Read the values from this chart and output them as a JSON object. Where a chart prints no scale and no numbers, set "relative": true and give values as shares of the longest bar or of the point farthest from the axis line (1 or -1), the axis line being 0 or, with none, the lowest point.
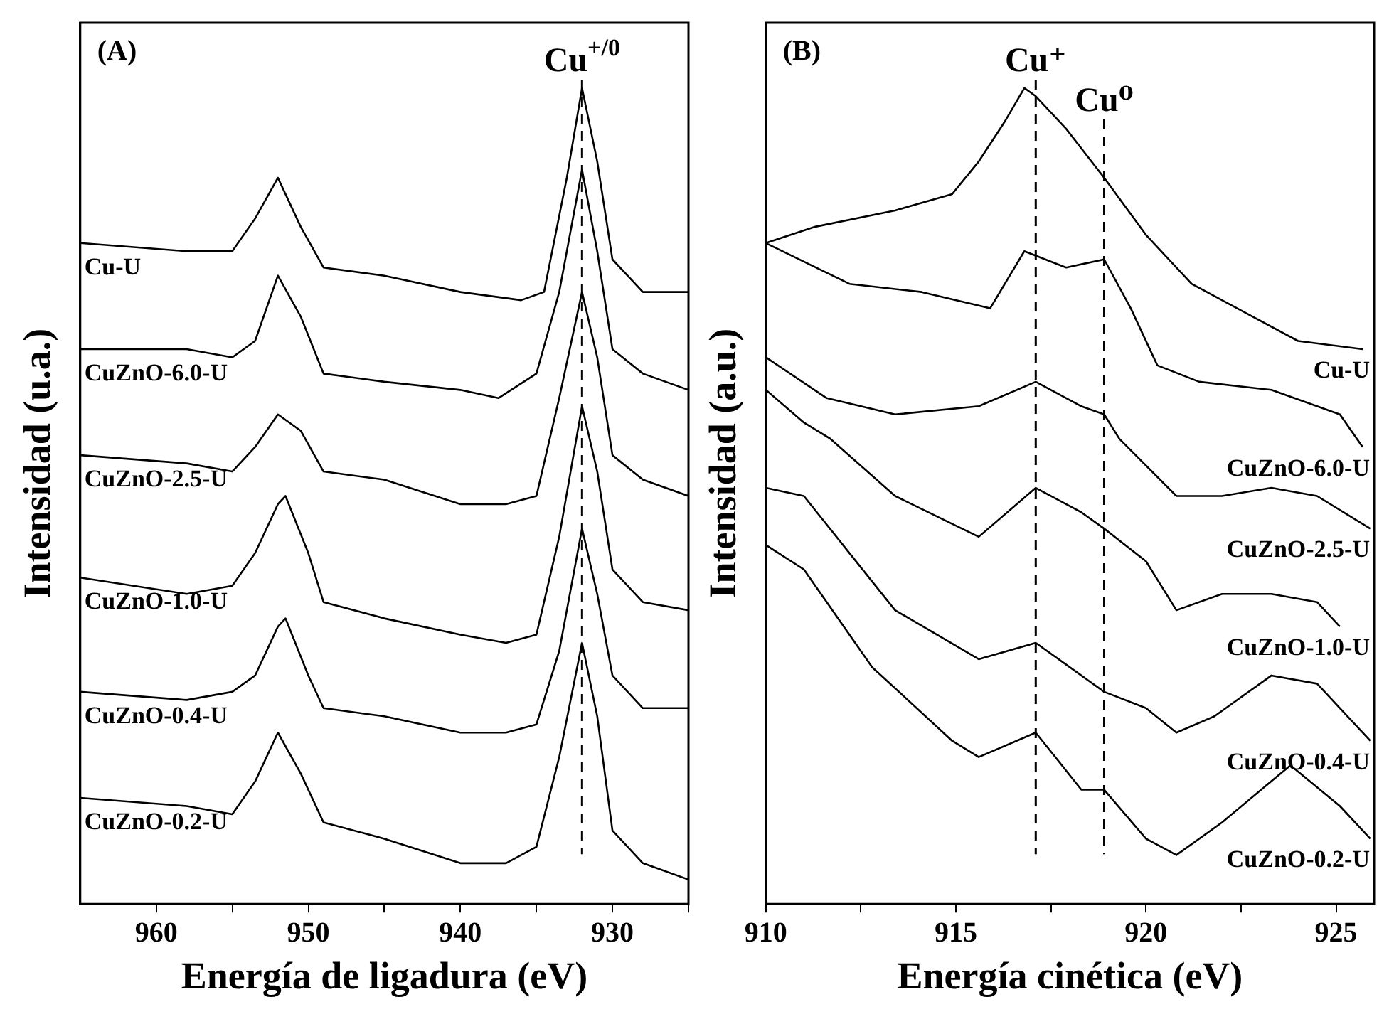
{
  "chart_data": [
    {
      "type": "line",
      "title": "(A)",
      "xlabel": "Energía de ligadura (eV)",
      "ylabel": "Intensidad (u.a.)",
      "relative": true,
      "xlim": [
        965,
        925
      ],
      "xticks": [
        960,
        {
          "value": 955,
          "label": null
        },
        950,
        {
          "value": 945,
          "label": null
        },
        940,
        {
          "value": 935,
          "label": null
        },
        930,
        {
          "value": 925,
          "label": null
        }
      ],
      "tick_labels": "x",
      "grid": false,
      "legend": false,
      "marker": "none",
      "line_style": "solid",
      "ref_lines": [
        {
          "axis": "x",
          "value": 932,
          "label": "Cu$^{+/0}$",
          "line_style": "dashed",
          "color": "#000000"
        }
      ],
      "series": [
        {
          "name": "Cu-U",
          "color": "#000000",
          "x": [
            965,
            958,
            955,
            953.5,
            952,
            950.5,
            949,
            945,
            940,
            936,
            934.5,
            933,
            932,
            931,
            930,
            928,
            925
          ],
          "values": [
            0.81,
            0.8,
            0.8,
            0.84,
            0.89,
            0.83,
            0.78,
            0.77,
            0.75,
            0.74,
            0.75,
            0.89,
            1.0,
            0.91,
            0.79,
            0.75,
            0.75
          ]
        },
        {
          "name": "CuZnO-6.0-U",
          "color": "#000000",
          "x": [
            965,
            958,
            955,
            953.5,
            952,
            950.5,
            949,
            945,
            940,
            937.5,
            935,
            933.5,
            932,
            931,
            930,
            928,
            925
          ],
          "values": [
            0.68,
            0.68,
            0.67,
            0.69,
            0.77,
            0.72,
            0.65,
            0.64,
            0.63,
            0.62,
            0.65,
            0.75,
            0.9,
            0.8,
            0.68,
            0.65,
            0.63
          ]
        },
        {
          "name": "CuZnO-2.5-U",
          "color": "#000000",
          "x": [
            965,
            958,
            955,
            953.5,
            952,
            950.5,
            949,
            945,
            940,
            937,
            935,
            933.5,
            932,
            931,
            930,
            928,
            925
          ],
          "values": [
            0.55,
            0.54,
            0.53,
            0.56,
            0.6,
            0.58,
            0.53,
            0.52,
            0.49,
            0.49,
            0.5,
            0.62,
            0.75,
            0.67,
            0.55,
            0.52,
            0.5
          ]
        },
        {
          "name": "CuZnO-1.0-U",
          "color": "#000000",
          "x": [
            965,
            958,
            955,
            953.5,
            952,
            951.5,
            950,
            949,
            945,
            940,
            937,
            935,
            933.5,
            932,
            931,
            930,
            928,
            925
          ],
          "values": [
            0.4,
            0.38,
            0.39,
            0.43,
            0.49,
            0.5,
            0.43,
            0.37,
            0.35,
            0.33,
            0.32,
            0.33,
            0.45,
            0.61,
            0.53,
            0.41,
            0.37,
            0.36
          ]
        },
        {
          "name": "CuZnO-0.4-U",
          "color": "#000000",
          "x": [
            965,
            958,
            955,
            953.5,
            952,
            951.5,
            950,
            949,
            945,
            940,
            937,
            935,
            933.5,
            932,
            931,
            930,
            928,
            925
          ],
          "values": [
            0.26,
            0.25,
            0.26,
            0.28,
            0.34,
            0.35,
            0.28,
            0.24,
            0.23,
            0.21,
            0.21,
            0.22,
            0.31,
            0.46,
            0.38,
            0.28,
            0.24,
            0.24
          ]
        },
        {
          "name": "CuZnO-0.2-U",
          "color": "#000000",
          "x": [
            965,
            958,
            955,
            953.5,
            952,
            950.5,
            949,
            945,
            940,
            937,
            935,
            933.5,
            932,
            931,
            930,
            928,
            925
          ],
          "values": [
            0.13,
            0.12,
            0.11,
            0.15,
            0.21,
            0.16,
            0.1,
            0.08,
            0.05,
            0.05,
            0.07,
            0.18,
            0.32,
            0.23,
            0.09,
            0.05,
            0.03
          ]
        }
      ]
    },
    {
      "type": "line",
      "title": "(B)",
      "xlabel": "Energía cinética (eV)",
      "ylabel": "Intensidad (a.u.)",
      "relative": true,
      "xlim": [
        910,
        926
      ],
      "xticks": [
        910,
        {
          "value": 912.5,
          "label": null
        },
        915,
        {
          "value": 917.5,
          "label": null
        },
        920,
        {
          "value": 922.5,
          "label": null
        },
        925
      ],
      "tick_labels": "x",
      "grid": false,
      "legend": false,
      "marker": "none",
      "line_style": "solid",
      "ref_lines": [
        {
          "axis": "x",
          "value": 917.1,
          "label": "Cu⁺",
          "line_style": "dashed",
          "color": "#000000"
        },
        {
          "axis": "x",
          "value": 918.9,
          "label": "Cu⁰",
          "line_style": "dashed",
          "color": "#000000"
        }
      ],
      "series": [
        {
          "name": "Cu-U",
          "color": "#000000",
          "x": [
            910,
            911.3,
            913.4,
            914.9,
            915.6,
            916.3,
            916.8,
            917.1,
            917.9,
            918.9,
            920.0,
            921.2,
            922.8,
            924.0,
            925.7
          ],
          "values": [
            0.81,
            0.83,
            0.85,
            0.87,
            0.91,
            0.96,
            1.0,
            0.99,
            0.95,
            0.89,
            0.82,
            0.76,
            0.72,
            0.69,
            0.68
          ]
        },
        {
          "name": "CuZnO-6.0-U",
          "color": "#000000",
          "x": [
            910,
            912.2,
            914.1,
            915.9,
            916.8,
            917.9,
            918.9,
            919.6,
            920.3,
            921.4,
            923.3,
            925.1,
            925.7
          ],
          "values": [
            0.81,
            0.76,
            0.75,
            0.73,
            0.8,
            0.78,
            0.79,
            0.73,
            0.66,
            0.64,
            0.63,
            0.6,
            0.56
          ]
        },
        {
          "name": "CuZnO-2.5-U",
          "color": "#000000",
          "x": [
            910,
            911.6,
            913.4,
            915.6,
            917.1,
            918.3,
            918.9,
            919.3,
            920.8,
            922.0,
            923.3,
            924.5,
            925.9
          ],
          "values": [
            0.67,
            0.62,
            0.6,
            0.61,
            0.64,
            0.61,
            0.6,
            0.57,
            0.5,
            0.5,
            0.51,
            0.5,
            0.46
          ]
        },
        {
          "name": "CuZnO-1.0-U",
          "color": "#000000",
          "x": [
            910,
            911.0,
            911.7,
            913.4,
            915.6,
            917.1,
            918.3,
            918.9,
            920.0,
            920.8,
            922.0,
            923.3,
            924.5,
            925.1
          ],
          "values": [
            0.63,
            0.59,
            0.57,
            0.5,
            0.45,
            0.51,
            0.48,
            0.46,
            0.42,
            0.36,
            0.38,
            0.38,
            0.37,
            0.34
          ]
        },
        {
          "name": "CuZnO-0.4-U",
          "color": "#000000",
          "x": [
            910,
            911.0,
            912.2,
            913.4,
            915.6,
            917.1,
            918.3,
            918.9,
            920.0,
            920.8,
            921.8,
            923.3,
            924.5,
            925.9
          ],
          "values": [
            0.51,
            0.5,
            0.43,
            0.36,
            0.3,
            0.32,
            0.28,
            0.26,
            0.24,
            0.21,
            0.23,
            0.28,
            0.27,
            0.2
          ]
        },
        {
          "name": "CuZnO-0.2-U",
          "color": "#000000",
          "x": [
            910,
            911.0,
            912.8,
            914.9,
            915.6,
            917.1,
            918.3,
            918.9,
            920.0,
            920.8,
            922.0,
            923.8,
            925.1,
            925.9
          ],
          "values": [
            0.44,
            0.41,
            0.29,
            0.2,
            0.18,
            0.21,
            0.14,
            0.14,
            0.08,
            0.06,
            0.1,
            0.17,
            0.12,
            0.08
          ]
        }
      ]
    }
  ]
}
